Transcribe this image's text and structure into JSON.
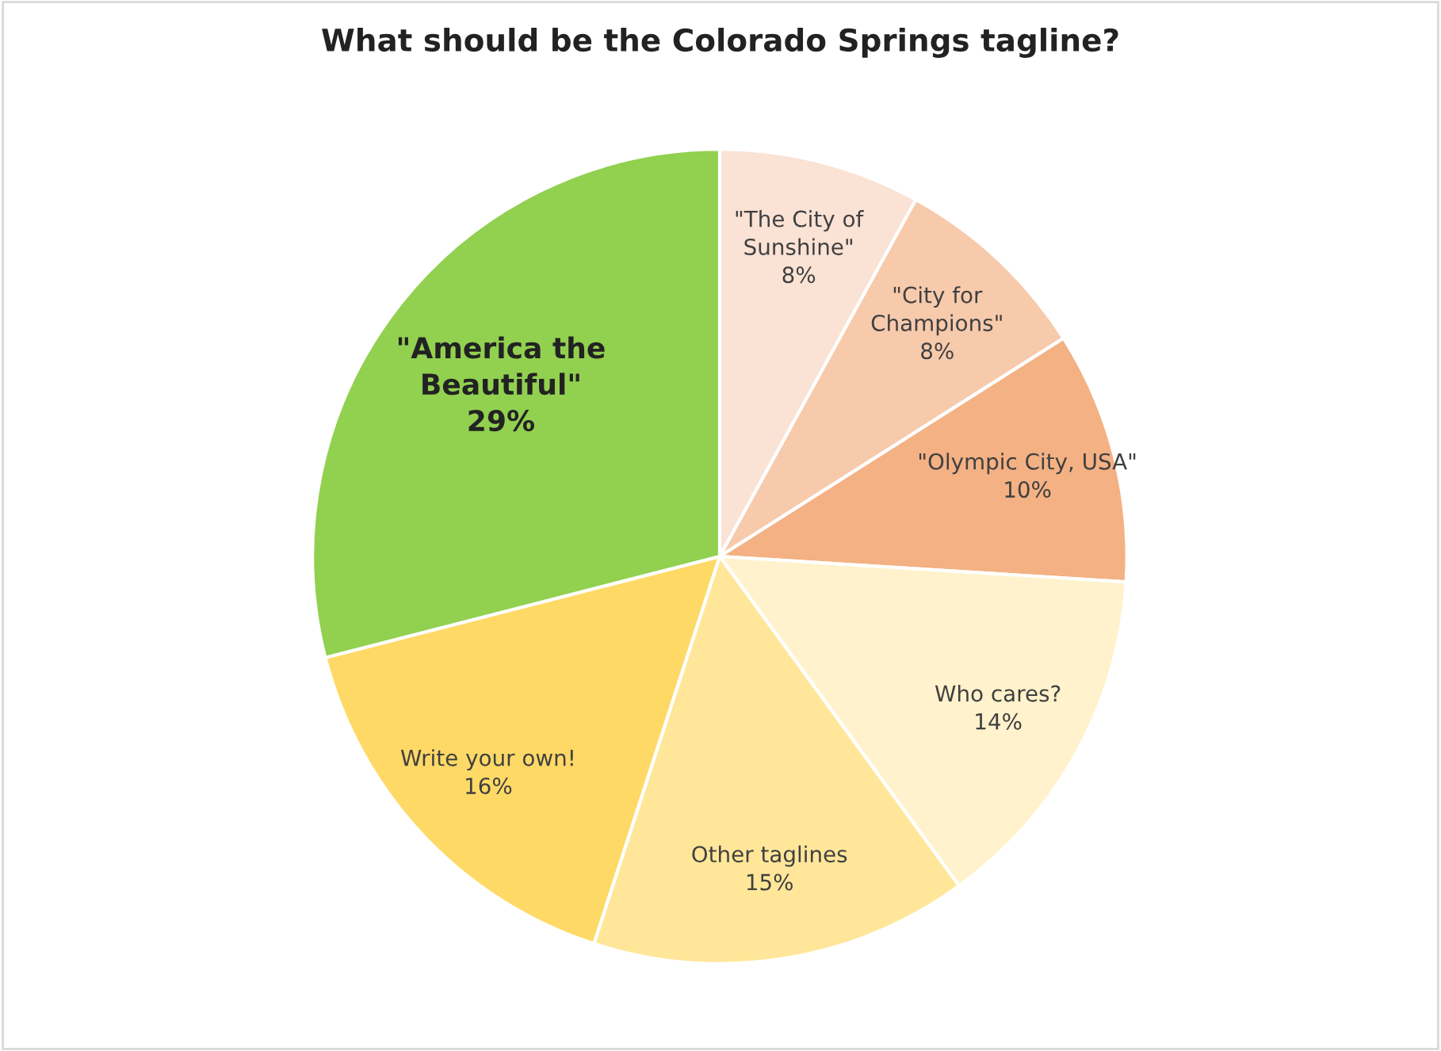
{
  "chart_data": {
    "type": "pie",
    "title": "What should be the Colorado Springs tagline?",
    "categories": [
      "\"The City of\nSunshine\"",
      "\"City for\nChampions\"",
      "\"Olympic City, USA\"",
      "Who cares?",
      "Other taglines",
      "Write your own!",
      "\"America the\nBeautiful\""
    ],
    "values": [
      8,
      8,
      10,
      14,
      15,
      16,
      29
    ],
    "value_labels": [
      "8%",
      "8%",
      "10%",
      "14%",
      "15%",
      "16%",
      "29%"
    ],
    "colors": [
      "#fae2d5",
      "#f7caac",
      "#f4b183",
      "#fff2cc",
      "#ffe699",
      "#ffd966",
      "#92d050"
    ],
    "legend": false
  }
}
